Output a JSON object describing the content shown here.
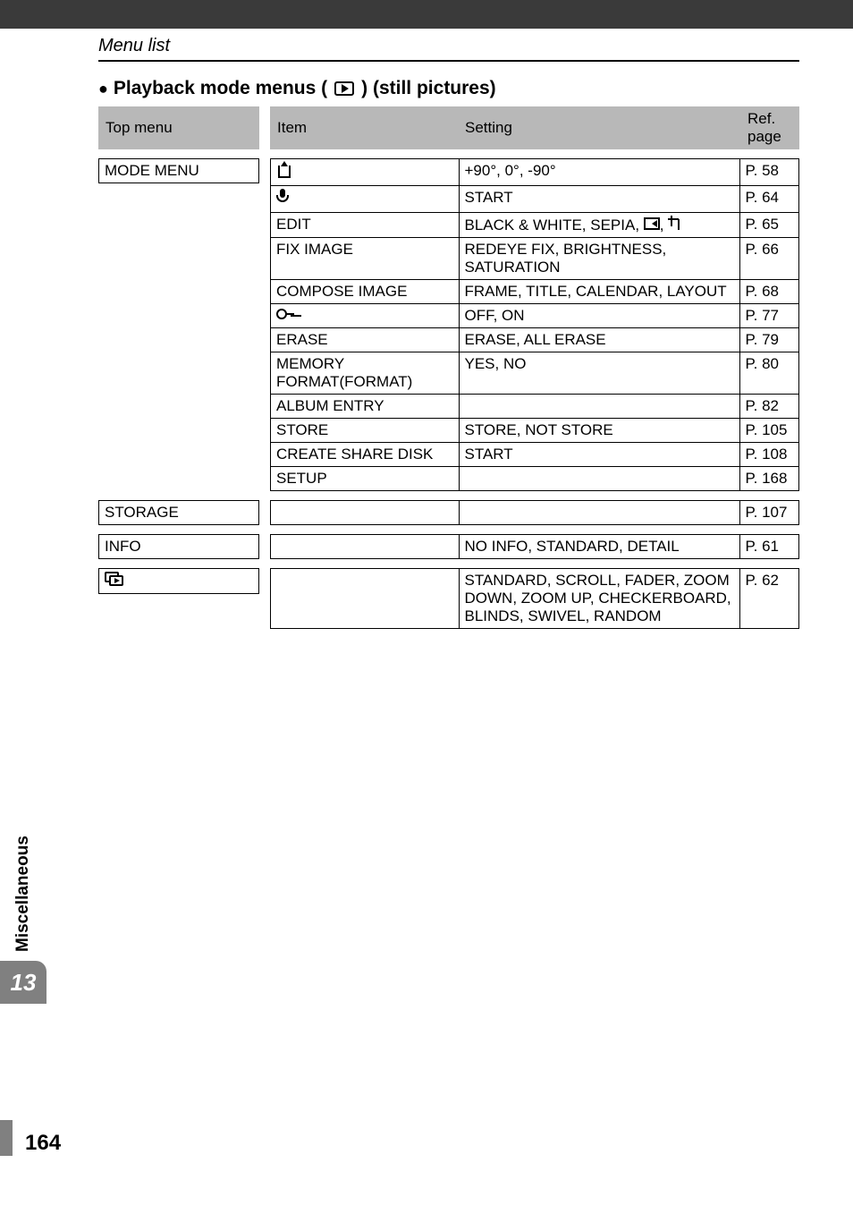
{
  "header": {
    "section_title": "Menu list"
  },
  "subheading": {
    "prefix_bullet": "●",
    "text_before": "Playback mode menus (",
    "text_after": ") (still pictures)"
  },
  "table_header": {
    "top_menu": "Top menu",
    "item": "Item",
    "setting": "Setting",
    "ref_page": "Ref. page"
  },
  "groups": [
    {
      "top_menu": "MODE MENU",
      "rows": [
        {
          "item_icon": "rotate",
          "item": "",
          "setting": "+90°, 0°, -90°",
          "ref": "P. 58"
        },
        {
          "item_icon": "mic",
          "item": "",
          "setting": "START",
          "ref": "P. 64"
        },
        {
          "item": "EDIT",
          "setting": "BLACK & WHITE, SEPIA, ",
          "setting_icons": [
            "resize",
            "crop"
          ],
          "ref": "P. 65"
        },
        {
          "item": "FIX IMAGE",
          "setting": "REDEYE FIX, BRIGHTNESS, SATURATION",
          "ref": "P. 66"
        },
        {
          "item": "COMPOSE IMAGE",
          "setting": "FRAME, TITLE, CALENDAR, LAYOUT",
          "ref": "P. 68"
        },
        {
          "item_icon": "key",
          "item": "",
          "setting": "OFF, ON",
          "ref": "P. 77"
        },
        {
          "item": "ERASE",
          "setting": "ERASE, ALL ERASE",
          "ref": "P. 79"
        },
        {
          "item": "MEMORY FORMAT(FORMAT)",
          "setting": "YES, NO",
          "ref": "P. 80"
        },
        {
          "item": "ALBUM ENTRY",
          "setting": "",
          "ref": "P. 82"
        },
        {
          "item": "STORE",
          "setting": "STORE, NOT STORE",
          "ref": "P. 105"
        },
        {
          "item": "CREATE SHARE DISK",
          "setting": "START",
          "ref": "P. 108"
        },
        {
          "item": "SETUP",
          "setting": "",
          "ref": "P. 168"
        }
      ]
    },
    {
      "top_menu": "STORAGE",
      "rows": [
        {
          "item": "",
          "setting": "",
          "ref": "P. 107"
        }
      ]
    },
    {
      "top_menu": "INFO",
      "rows": [
        {
          "item": "",
          "setting": "NO INFO, STANDARD, DETAIL",
          "ref": "P. 61"
        }
      ]
    },
    {
      "top_menu_icon": "slideshow",
      "top_menu": "",
      "rows": [
        {
          "item": "",
          "setting": "STANDARD, SCROLL, FADER, ZOOM DOWN, ZOOM UP, CHECKERBOARD, BLINDS, SWIVEL, RANDOM",
          "ref": "P. 62"
        }
      ]
    }
  ],
  "sidebar": {
    "chapter_number": "13",
    "chapter_label": "Miscellaneous"
  },
  "page_number": "164",
  "colors": {
    "topbar": "#3a3a3a",
    "header_bg": "#b8b8b8",
    "tab_bg": "#808080",
    "text": "#000000"
  }
}
